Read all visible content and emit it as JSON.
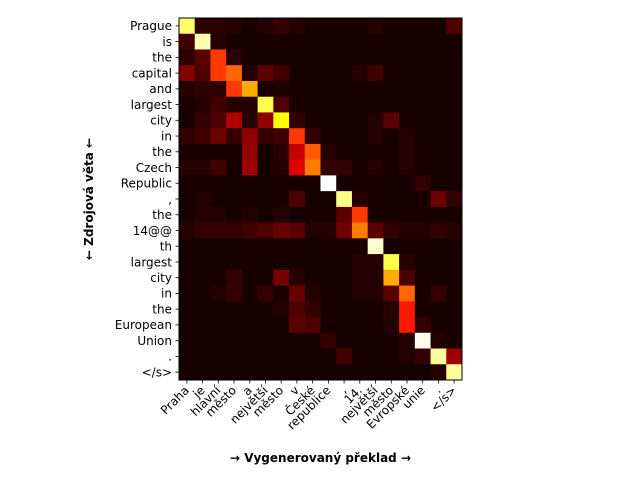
{
  "chart_data": {
    "type": "heatmap",
    "title": "",
    "xlabel": "→ Vygenerovaný překlad →",
    "ylabel": "← Zdrojová věta ←",
    "colormap": "hot",
    "value_range": [
      0,
      1
    ],
    "x_tokens": [
      "Praha",
      "je",
      "hlavní",
      "město",
      "a",
      "největší",
      "město",
      "v",
      "České",
      "republice",
      ",",
      "14.",
      "největší",
      "město",
      "Evropské",
      "unie",
      ".",
      "</s>"
    ],
    "y_tokens": [
      "Prague",
      "is",
      "the",
      "capital",
      "and",
      "largest",
      "city",
      "in",
      "the",
      "Czech",
      "Republic",
      ",",
      "the",
      "14@@",
      "th",
      "largest",
      "city",
      "in",
      "the",
      "European",
      "Union",
      ".",
      "</s>"
    ],
    "values": [
      [
        0.85,
        0.05,
        0.05,
        0.04,
        0.02,
        0.04,
        0.06,
        0.04,
        0.02,
        0.02,
        0.02,
        0.02,
        0.04,
        0.02,
        0.02,
        0.02,
        0.02,
        0.1
      ],
      [
        0.08,
        0.92,
        0.04,
        0.02,
        0.02,
        0.02,
        0.02,
        0.02,
        0.02,
        0.02,
        0.02,
        0.02,
        0.02,
        0.02,
        0.02,
        0.02,
        0.02,
        0.02
      ],
      [
        0.05,
        0.12,
        0.45,
        0.05,
        0.02,
        0.02,
        0.02,
        0.02,
        0.02,
        0.02,
        0.02,
        0.02,
        0.02,
        0.02,
        0.02,
        0.02,
        0.02,
        0.02
      ],
      [
        0.18,
        0.1,
        0.45,
        0.52,
        0.04,
        0.12,
        0.08,
        0.02,
        0.02,
        0.02,
        0.02,
        0.04,
        0.08,
        0.02,
        0.02,
        0.02,
        0.02,
        0.02
      ],
      [
        0.04,
        0.05,
        0.05,
        0.45,
        0.62,
        0.02,
        0.03,
        0.02,
        0.02,
        0.02,
        0.02,
        0.02,
        0.02,
        0.02,
        0.02,
        0.02,
        0.02,
        0.02
      ],
      [
        0.02,
        0.04,
        0.08,
        0.04,
        0.04,
        0.82,
        0.1,
        0.02,
        0.02,
        0.02,
        0.02,
        0.02,
        0.02,
        0.02,
        0.02,
        0.02,
        0.02,
        0.02
      ],
      [
        0.02,
        0.06,
        0.1,
        0.25,
        0.04,
        0.2,
        0.75,
        0.06,
        0.02,
        0.02,
        0.02,
        0.02,
        0.04,
        0.12,
        0.02,
        0.02,
        0.02,
        0.02
      ],
      [
        0.06,
        0.08,
        0.15,
        0.06,
        0.2,
        0.06,
        0.08,
        0.45,
        0.06,
        0.02,
        0.02,
        0.02,
        0.04,
        0.02,
        0.04,
        0.02,
        0.02,
        0.02
      ],
      [
        0.02,
        0.02,
        0.02,
        0.02,
        0.2,
        0.02,
        0.05,
        0.28,
        0.5,
        0.04,
        0.02,
        0.02,
        0.02,
        0.02,
        0.04,
        0.02,
        0.02,
        0.02
      ],
      [
        0.04,
        0.04,
        0.08,
        0.02,
        0.22,
        0.02,
        0.04,
        0.32,
        0.55,
        0.06,
        0.06,
        0.02,
        0.04,
        0.02,
        0.04,
        0.02,
        0.02,
        0.02
      ],
      [
        0.02,
        0.02,
        0.02,
        0.02,
        0.02,
        0.02,
        0.02,
        0.02,
        0.02,
        1.0,
        0.02,
        0.02,
        0.02,
        0.02,
        0.02,
        0.06,
        0.02,
        0.02
      ],
      [
        0.02,
        0.04,
        0.02,
        0.02,
        0.02,
        0.02,
        0.02,
        0.1,
        0.02,
        0.02,
        0.88,
        0.04,
        0.02,
        0.02,
        0.02,
        0.02,
        0.15,
        0.06
      ],
      [
        0.02,
        0.04,
        0.04,
        0.02,
        0.04,
        0.02,
        0.04,
        0.02,
        0.02,
        0.02,
        0.12,
        0.45,
        0.02,
        0.02,
        0.02,
        0.02,
        0.02,
        0.02
      ],
      [
        0.04,
        0.06,
        0.06,
        0.06,
        0.08,
        0.1,
        0.14,
        0.12,
        0.04,
        0.04,
        0.15,
        0.55,
        0.12,
        0.06,
        0.04,
        0.04,
        0.06,
        0.04
      ],
      [
        0.02,
        0.02,
        0.02,
        0.02,
        0.02,
        0.02,
        0.02,
        0.02,
        0.02,
        0.02,
        0.02,
        0.02,
        0.95,
        0.02,
        0.02,
        0.02,
        0.02,
        0.02
      ],
      [
        0.02,
        0.02,
        0.02,
        0.02,
        0.02,
        0.02,
        0.02,
        0.02,
        0.02,
        0.02,
        0.02,
        0.04,
        0.04,
        0.82,
        0.04,
        0.02,
        0.02,
        0.02
      ],
      [
        0.02,
        0.02,
        0.02,
        0.06,
        0.02,
        0.02,
        0.16,
        0.04,
        0.02,
        0.02,
        0.02,
        0.04,
        0.04,
        0.62,
        0.1,
        0.02,
        0.02,
        0.02
      ],
      [
        0.02,
        0.02,
        0.04,
        0.06,
        0.02,
        0.06,
        0.02,
        0.14,
        0.04,
        0.02,
        0.02,
        0.04,
        0.04,
        0.12,
        0.52,
        0.02,
        0.06,
        0.02
      ],
      [
        0.02,
        0.02,
        0.02,
        0.02,
        0.02,
        0.02,
        0.04,
        0.1,
        0.06,
        0.02,
        0.02,
        0.02,
        0.02,
        0.04,
        0.4,
        0.02,
        0.02,
        0.02
      ],
      [
        0.02,
        0.02,
        0.02,
        0.02,
        0.02,
        0.02,
        0.02,
        0.12,
        0.1,
        0.02,
        0.02,
        0.02,
        0.02,
        0.04,
        0.4,
        0.06,
        0.02,
        0.02
      ],
      [
        0.02,
        0.02,
        0.02,
        0.02,
        0.02,
        0.02,
        0.02,
        0.02,
        0.02,
        0.06,
        0.02,
        0.02,
        0.02,
        0.02,
        0.04,
        0.98,
        0.04,
        0.02
      ],
      [
        0.02,
        0.02,
        0.02,
        0.02,
        0.02,
        0.02,
        0.02,
        0.02,
        0.02,
        0.02,
        0.08,
        0.02,
        0.02,
        0.02,
        0.04,
        0.06,
        0.9,
        0.22
      ],
      [
        0.02,
        0.02,
        0.02,
        0.02,
        0.02,
        0.02,
        0.02,
        0.02,
        0.02,
        0.02,
        0.02,
        0.02,
        0.02,
        0.02,
        0.02,
        0.02,
        0.04,
        0.9
      ]
    ]
  }
}
